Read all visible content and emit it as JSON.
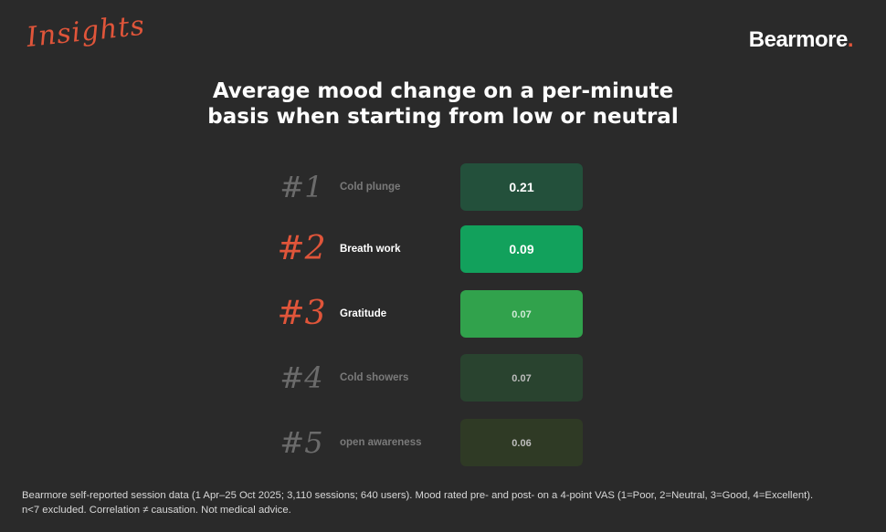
{
  "header": {
    "insights_label": "Insights",
    "brand_name": "Bearmore",
    "brand_dot": "."
  },
  "title": {
    "line1": "Average mood change on a per-minute",
    "line2": "basis when starting from low or neutral"
  },
  "chart_data": {
    "type": "table",
    "title": "Average mood change on a per-minute basis when starting from low or neutral",
    "rows": [
      {
        "rank": "#1",
        "label": "Cold plunge",
        "value": "0.21",
        "highlight": false,
        "rank_color": "#6b6b6b",
        "label_color": "#7a7a7a",
        "bar_color": "#23503b",
        "value_color": "#ffffff",
        "value_size": 14
      },
      {
        "rank": "#2",
        "label": "Breath work",
        "value": "0.09",
        "highlight": true,
        "rank_color": "#e0553a",
        "label_color": "#ffffff",
        "bar_color": "#12a15c",
        "value_color": "#ffffff",
        "value_size": 14
      },
      {
        "rank": "#3",
        "label": "Gratitude",
        "value": "0.07",
        "highlight": true,
        "rank_color": "#e0553a",
        "label_color": "#ffffff",
        "bar_color": "#31a24c",
        "value_color": "#cfe9d6",
        "value_size": 11
      },
      {
        "rank": "#4",
        "label": "Cold showers",
        "value": "0.07",
        "highlight": false,
        "rank_color": "#6b6b6b",
        "label_color": "#7a7a7a",
        "bar_color": "#29432f",
        "value_color": "#bdbdbd",
        "value_size": 11
      },
      {
        "rank": "#5",
        "label": "open awareness",
        "value": "0.06",
        "highlight": false,
        "rank_color": "#6b6b6b",
        "label_color": "#7a7a7a",
        "bar_color": "#2f3a25",
        "value_color": "#bdbdbd",
        "value_size": 11
      }
    ]
  },
  "footnote": {
    "line1": "Bearmore self-reported session data (1 Apr–25 Oct 2025; 3,110 sessions; 640 users). Mood rated pre- and post- on a 4-point VAS (1=Poor, 2=Neutral, 3=Good, 4=Excellent).",
    "line2": "n<7 excluded. Correlation ≠ causation. Not medical advice."
  },
  "colors": {
    "background": "#2a2a2a",
    "accent": "#e0553a"
  }
}
